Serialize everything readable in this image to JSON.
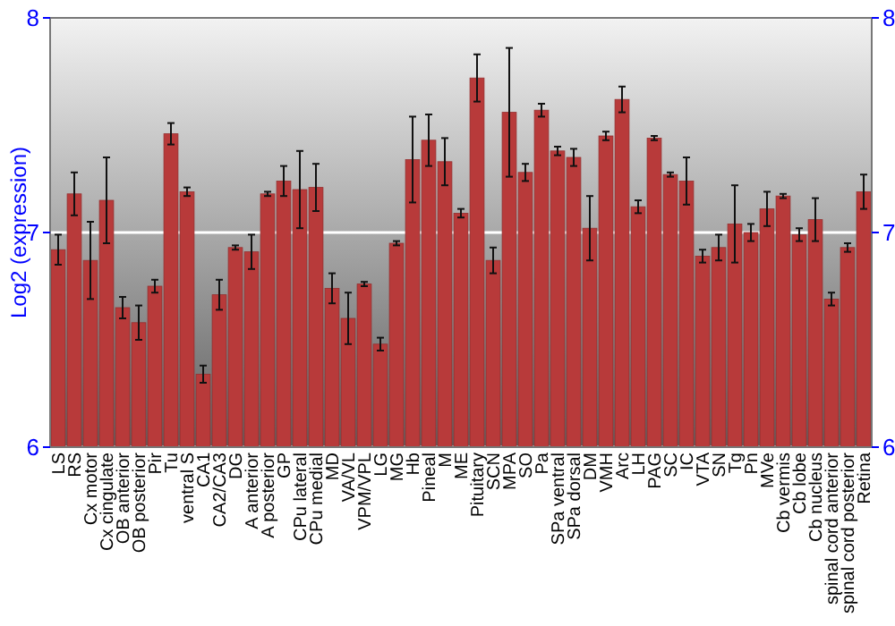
{
  "chart_data": {
    "type": "bar",
    "ylabel": "Log2 (expression)",
    "categories": [
      "LS",
      "RS",
      "Cx motor",
      "Cx cingulate",
      "OB anterior",
      "OB posterior",
      "Pir",
      "Tu",
      "ventral S",
      "CA1",
      "CA2/CA3",
      "DG",
      "A anterior",
      "A posterior",
      "GP",
      "CPu lateral",
      "CPu medial",
      "MD",
      "VA/VL",
      "VPM/VPL",
      "LG",
      "MG",
      "Hb",
      "Pineal",
      "M",
      "ME",
      "Pituitary",
      "SCN",
      "MPA",
      "SO",
      "Pa",
      "SPa ventral",
      "SPa dorsal",
      "DM",
      "VMH",
      "Arc",
      "LH",
      "PAG",
      "SC",
      "IC",
      "VTA",
      "SN",
      "Tg",
      "Pn",
      "MVe",
      "Cb vermis",
      "Cb lobe",
      "Cb nucleus",
      "spinal cord anterior",
      "spinal cord posterior",
      "Retina"
    ],
    "values": [
      6.92,
      7.18,
      6.87,
      7.15,
      6.65,
      6.58,
      6.75,
      7.46,
      7.19,
      6.34,
      6.71,
      6.93,
      6.91,
      7.18,
      7.24,
      7.2,
      7.21,
      6.74,
      6.6,
      6.76,
      6.48,
      6.95,
      7.34,
      7.43,
      7.33,
      7.09,
      7.72,
      6.87,
      7.56,
      7.28,
      7.57,
      7.38,
      7.35,
      7.02,
      7.45,
      7.62,
      7.12,
      7.44,
      7.27,
      7.24,
      6.89,
      6.93,
      7.04,
      7.0,
      7.11,
      7.17,
      6.99,
      7.06,
      6.69,
      6.93,
      7.19
    ],
    "errors": [
      0.07,
      0.1,
      0.18,
      0.2,
      0.05,
      0.08,
      0.03,
      0.05,
      0.02,
      0.04,
      0.07,
      0.01,
      0.08,
      0.01,
      0.07,
      0.18,
      0.11,
      0.07,
      0.12,
      0.01,
      0.03,
      0.01,
      0.2,
      0.12,
      0.11,
      0.02,
      0.11,
      0.06,
      0.3,
      0.04,
      0.03,
      0.02,
      0.04,
      0.15,
      0.02,
      0.06,
      0.03,
      0.01,
      0.01,
      0.11,
      0.03,
      0.06,
      0.18,
      0.04,
      0.08,
      0.01,
      0.03,
      0.1,
      0.03,
      0.02,
      0.08
    ],
    "color": "#b83a3a",
    "ylim": [
      6,
      8
    ],
    "yticks": [
      6,
      7,
      8
    ],
    "y2lim": [
      6,
      8
    ],
    "y2ticks": [
      6,
      7,
      8
    ],
    "grid": "y"
  }
}
